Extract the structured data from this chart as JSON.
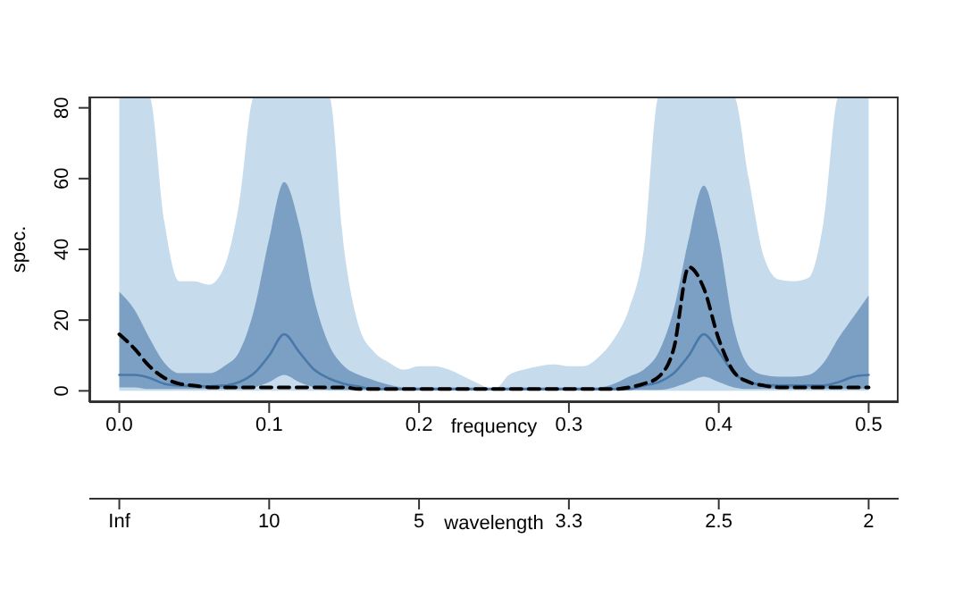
{
  "chart_data": {
    "type": "line",
    "xlabel": "frequency",
    "ylabel": "spec.",
    "x2label": "wavelength",
    "marker": "none",
    "x": [
      0,
      0.01,
      0.02,
      0.03,
      0.04,
      0.05,
      0.06,
      0.07,
      0.08,
      0.09,
      0.1,
      0.11,
      0.12,
      0.13,
      0.14,
      0.15,
      0.16,
      0.17,
      0.18,
      0.19,
      0.2,
      0.21,
      0.22,
      0.23,
      0.24,
      0.25,
      0.26,
      0.27,
      0.28,
      0.29,
      0.3,
      0.31,
      0.32,
      0.33,
      0.34,
      0.35,
      0.36,
      0.37,
      0.38,
      0.39,
      0.4,
      0.41,
      0.42,
      0.43,
      0.44,
      0.45,
      0.46,
      0.47,
      0.48,
      0.49,
      0.5
    ],
    "xlim": [
      -0.02,
      0.52
    ],
    "xticks": [
      {
        "value": 0,
        "label": "0.0"
      },
      0.1,
      0.2,
      0.3,
      0.4,
      0.5
    ],
    "annotations": [
      "Inf",
      "10",
      "5",
      "3.3",
      "2.5",
      "2"
    ],
    "ylim": [
      -3.2,
      83.2
    ],
    "yticks": [
      0,
      20,
      40,
      60,
      80
    ],
    "series": [
      {
        "color": "#a0c3df",
        "values": [
          null,
          null,
          null,
          null,
          null,
          null,
          null,
          null,
          null,
          null,
          null,
          null,
          null,
          null,
          null,
          null,
          null,
          null,
          null,
          null,
          null,
          null,
          null,
          null,
          null,
          null,
          null,
          null,
          null,
          null,
          null,
          null,
          null,
          null,
          null,
          null,
          null,
          null,
          null,
          null,
          null,
          null,
          null,
          null,
          null,
          null,
          null,
          null,
          null,
          null,
          null
        ],
        "lower": [
          0,
          0,
          0,
          0,
          0,
          0,
          0,
          0,
          0,
          0,
          0,
          0,
          0,
          0,
          0,
          0,
          0,
          0,
          0,
          0,
          0,
          0,
          0,
          0,
          0,
          0,
          0,
          0,
          0,
          0,
          0,
          0,
          0,
          0,
          0,
          0,
          0,
          0,
          0,
          0,
          0,
          0,
          0,
          0,
          0,
          0,
          0,
          0,
          0,
          0,
          0
        ],
        "upper": [
          83.2,
          83.2,
          83.2,
          48,
          31,
          31,
          30,
          35,
          53,
          83.2,
          83.2,
          83.2,
          83.2,
          83.2,
          83.2,
          40,
          18,
          11,
          8,
          6,
          7,
          7,
          6,
          4,
          2,
          0.3,
          4.5,
          6,
          7,
          7.5,
          7,
          7,
          9.6,
          14.6,
          23,
          40,
          83.2,
          83.2,
          83.2,
          83.2,
          83.2,
          83.2,
          60,
          38,
          31.5,
          31,
          32,
          48,
          83.2,
          83.2,
          83.2
        ]
      },
      {
        "color": "#4a78a8",
        "line_style": "solid",
        "values": [
          4.5,
          4.5,
          3.7,
          2,
          1.5,
          1.3,
          1.3,
          1.5,
          2.5,
          5,
          10,
          16,
          11,
          6,
          3.5,
          2,
          1.2,
          0.5,
          0.5,
          0.5,
          0.5,
          0.5,
          0.5,
          0.5,
          0.5,
          0.5,
          0.5,
          0.5,
          0.5,
          0.5,
          0.5,
          0.5,
          0.5,
          0.5,
          0.5,
          1.5,
          2.5,
          5,
          10,
          16,
          11,
          5,
          2.5,
          1.7,
          1.5,
          1.5,
          1.5,
          1.5,
          2.5,
          4,
          4.5
        ],
        "lower": [
          1,
          1,
          0.5,
          0.5,
          0.5,
          0.5,
          0.5,
          0.5,
          0.5,
          1,
          2.5,
          4.5,
          2.5,
          1,
          0.3,
          0.3,
          0.3,
          0.3,
          0.3,
          0.3,
          0.3,
          0.3,
          0.3,
          0.3,
          0.3,
          0.3,
          0.3,
          0.3,
          0.3,
          0.3,
          0.3,
          0.3,
          0.3,
          0.3,
          0.3,
          0.3,
          0.3,
          1,
          2.5,
          4,
          2.5,
          1,
          0.5,
          0.5,
          0.5,
          0.5,
          0.5,
          0.5,
          0.5,
          0.5,
          0.5
        ],
        "upper": [
          28,
          23,
          15,
          8,
          5,
          5,
          5,
          7,
          11,
          23,
          43,
          59,
          47,
          26,
          13,
          7,
          4.5,
          3,
          1.7,
          1,
          1,
          1,
          1,
          1,
          1,
          1,
          1,
          1,
          1,
          1,
          1,
          1,
          1,
          2,
          4,
          6,
          11,
          23,
          43,
          58,
          43,
          18,
          7,
          4.5,
          4,
          4,
          4.5,
          8,
          15,
          21,
          27
        ]
      },
      {
        "color": "#000000",
        "line_style": "dashed",
        "values": [
          16,
          12,
          7,
          3.7,
          2,
          1.5,
          1,
          1,
          1,
          1,
          1,
          1,
          1,
          1,
          1,
          1,
          0.5,
          0.5,
          0.5,
          0.5,
          0.5,
          0.5,
          0.5,
          0.5,
          0.5,
          0.5,
          0.5,
          0.5,
          0.5,
          0.5,
          0.5,
          0.5,
          0.5,
          0.5,
          1,
          2,
          4,
          12,
          35,
          29,
          14.6,
          5.4,
          2.5,
          1.5,
          1,
          1,
          1,
          1,
          1,
          1,
          1
        ]
      }
    ]
  }
}
